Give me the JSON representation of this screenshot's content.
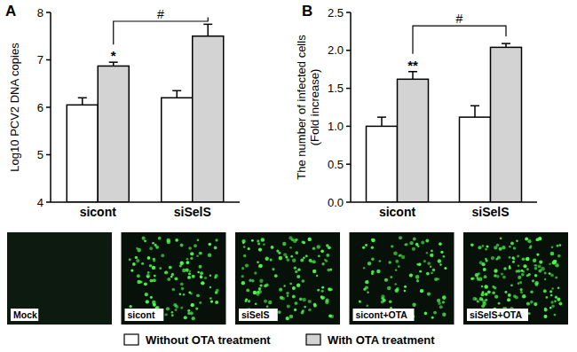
{
  "chart_data": [
    {
      "type": "bar",
      "title": "A",
      "y_label": [
        "Log10 PCV2 DNA copies"
      ],
      "categories": [
        "sicont",
        "siSelS"
      ],
      "series": [
        {
          "name": "Without OTA treatment",
          "color": "#ffffff",
          "values": [
            6.05,
            6.2
          ],
          "errors": [
            0.15,
            0.15
          ]
        },
        {
          "name": "With OTA treatment",
          "color": "#d3d3d3",
          "values": [
            6.87,
            7.5
          ],
          "errors": [
            0.08,
            0.25
          ]
        }
      ],
      "ylim": [
        4,
        8
      ],
      "yticks": [
        4,
        5,
        6,
        7,
        8
      ],
      "annotations": [
        {
          "text": "*",
          "category": "sicont",
          "series": "With OTA treatment"
        },
        {
          "text": "#",
          "between": [
            "sicont",
            "siSelS"
          ],
          "series": "With OTA treatment"
        }
      ]
    },
    {
      "type": "bar",
      "title": "B",
      "y_label": [
        "The number of infected cells",
        "(Fold increase)"
      ],
      "categories": [
        "sicont",
        "siSelS"
      ],
      "series": [
        {
          "name": "Without OTA treatment",
          "color": "#ffffff",
          "values": [
            1.0,
            1.12
          ],
          "errors": [
            0.12,
            0.15
          ]
        },
        {
          "name": "With OTA treatment",
          "color": "#d3d3d3",
          "values": [
            1.62,
            2.04
          ],
          "errors": [
            0.1,
            0.05
          ]
        }
      ],
      "ylim": [
        0,
        2.5
      ],
      "yticks": [
        {
          "value": 0,
          "label": "0.0"
        },
        {
          "value": 0.5,
          "label": "0.5"
        },
        {
          "value": 1,
          "label": "1.0"
        },
        {
          "value": 1.5,
          "label": "1.5"
        },
        {
          "value": 2,
          "label": "2.0"
        },
        {
          "value": 2.5,
          "label": "2.5"
        }
      ],
      "annotations": [
        {
          "text": "**",
          "category": "sicont",
          "series": "With OTA treatment"
        },
        {
          "text": "#",
          "between": [
            "sicont",
            "siSelS"
          ],
          "series": "With OTA treatment"
        }
      ]
    }
  ],
  "image_panels": [
    "Mock",
    "sicont",
    "siSelS",
    "sicont+OTA",
    "siSelS+OTA"
  ]
}
